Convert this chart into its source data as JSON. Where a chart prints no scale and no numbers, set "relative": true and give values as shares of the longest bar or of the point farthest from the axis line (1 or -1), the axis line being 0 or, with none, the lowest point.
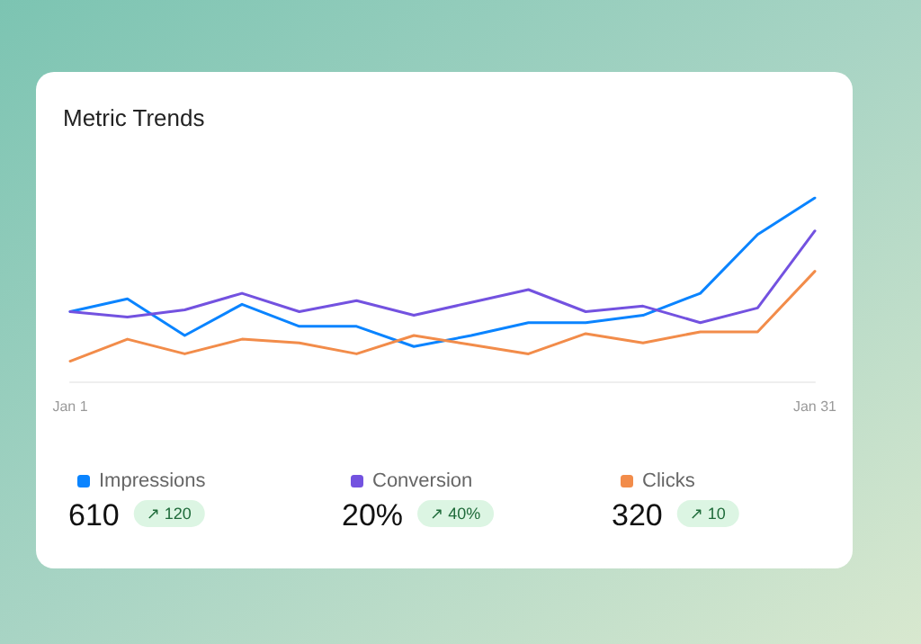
{
  "chart_data": {
    "type": "line",
    "title": "Metric Trends",
    "relative": true,
    "categories": [
      "Jan 1",
      null,
      null,
      null,
      null,
      null,
      null,
      null,
      null,
      null,
      null,
      null,
      null,
      "Jan 31"
    ],
    "series": [
      {
        "name": "Impressions",
        "color": "#0a84ff",
        "values": [
          0.38,
          0.45,
          0.25,
          0.42,
          0.3,
          0.3,
          0.19,
          0.25,
          0.32,
          0.32,
          0.36,
          0.48,
          0.8,
          1
        ]
      },
      {
        "name": "Conversion",
        "color": "#7352e0",
        "values": [
          0.38,
          0.35,
          0.39,
          0.48,
          0.38,
          0.44,
          0.36,
          0.43,
          0.5,
          0.38,
          0.41,
          0.32,
          0.4,
          0.82
        ]
      },
      {
        "name": "Clicks",
        "color": "#f28c4a",
        "values": [
          0.11,
          0.23,
          0.15,
          0.23,
          0.21,
          0.15,
          0.25,
          0.2,
          0.15,
          0.26,
          0.21,
          0.27,
          0.27,
          0.6
        ]
      }
    ],
    "legend": "bottom",
    "grid": false,
    "line_style": "solid",
    "annotations": [
      "610",
      "↗ 120",
      "20%",
      "↗ 40%",
      "320",
      "↗ 10"
    ]
  }
}
